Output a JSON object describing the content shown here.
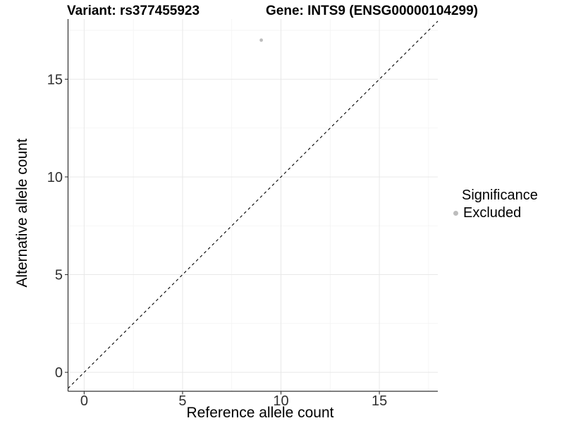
{
  "titles": {
    "variant": "Variant: rs377455923",
    "gene": "Gene: INTS9 (ENSG00000104299)"
  },
  "axes": {
    "x": {
      "label": "Reference allele count",
      "ticks": [
        0,
        5,
        10,
        15
      ]
    },
    "y": {
      "label": "Alternative allele count",
      "ticks": [
        0,
        5,
        10,
        15
      ]
    }
  },
  "legend": {
    "title": "Significance",
    "position": "right",
    "items": [
      {
        "label": "Excluded",
        "color": "#bdbdbd"
      }
    ]
  },
  "colors": {
    "axis_line": "#333333",
    "tick_text": "#303030",
    "major_grid": "#e8e8e8",
    "minor_grid": "#f3f3f3",
    "reference_line": "#000000",
    "point": "#bdbdbd",
    "background": "#ffffff"
  },
  "chart_data": {
    "type": "scatter",
    "title": "Variant: rs377455923 — Gene: INTS9 (ENSG00000104299)",
    "xlabel": "Reference allele count",
    "ylabel": "Alternative allele count",
    "xlim": [
      -0.82,
      17.97
    ],
    "ylim": [
      -0.97,
      18.08
    ],
    "x_ticks": [
      0,
      5,
      10,
      15
    ],
    "y_ticks": [
      0,
      5,
      10,
      15
    ],
    "grid": {
      "major_x": [
        0,
        5,
        10,
        15
      ],
      "major_y": [
        0,
        5,
        10,
        15
      ],
      "minor_x": [
        2.5,
        7.5,
        12.5,
        17.5
      ],
      "minor_y": [
        2.5,
        7.5,
        12.5,
        17.5
      ]
    },
    "reference_line": {
      "type": "identity",
      "equation": "y = x",
      "style": "dashed",
      "color": "#000000"
    },
    "series": [
      {
        "name": "Excluded",
        "color": "#bdbdbd",
        "points": [
          {
            "x": 9,
            "y": 17
          }
        ]
      }
    ],
    "legend_position": "right"
  }
}
